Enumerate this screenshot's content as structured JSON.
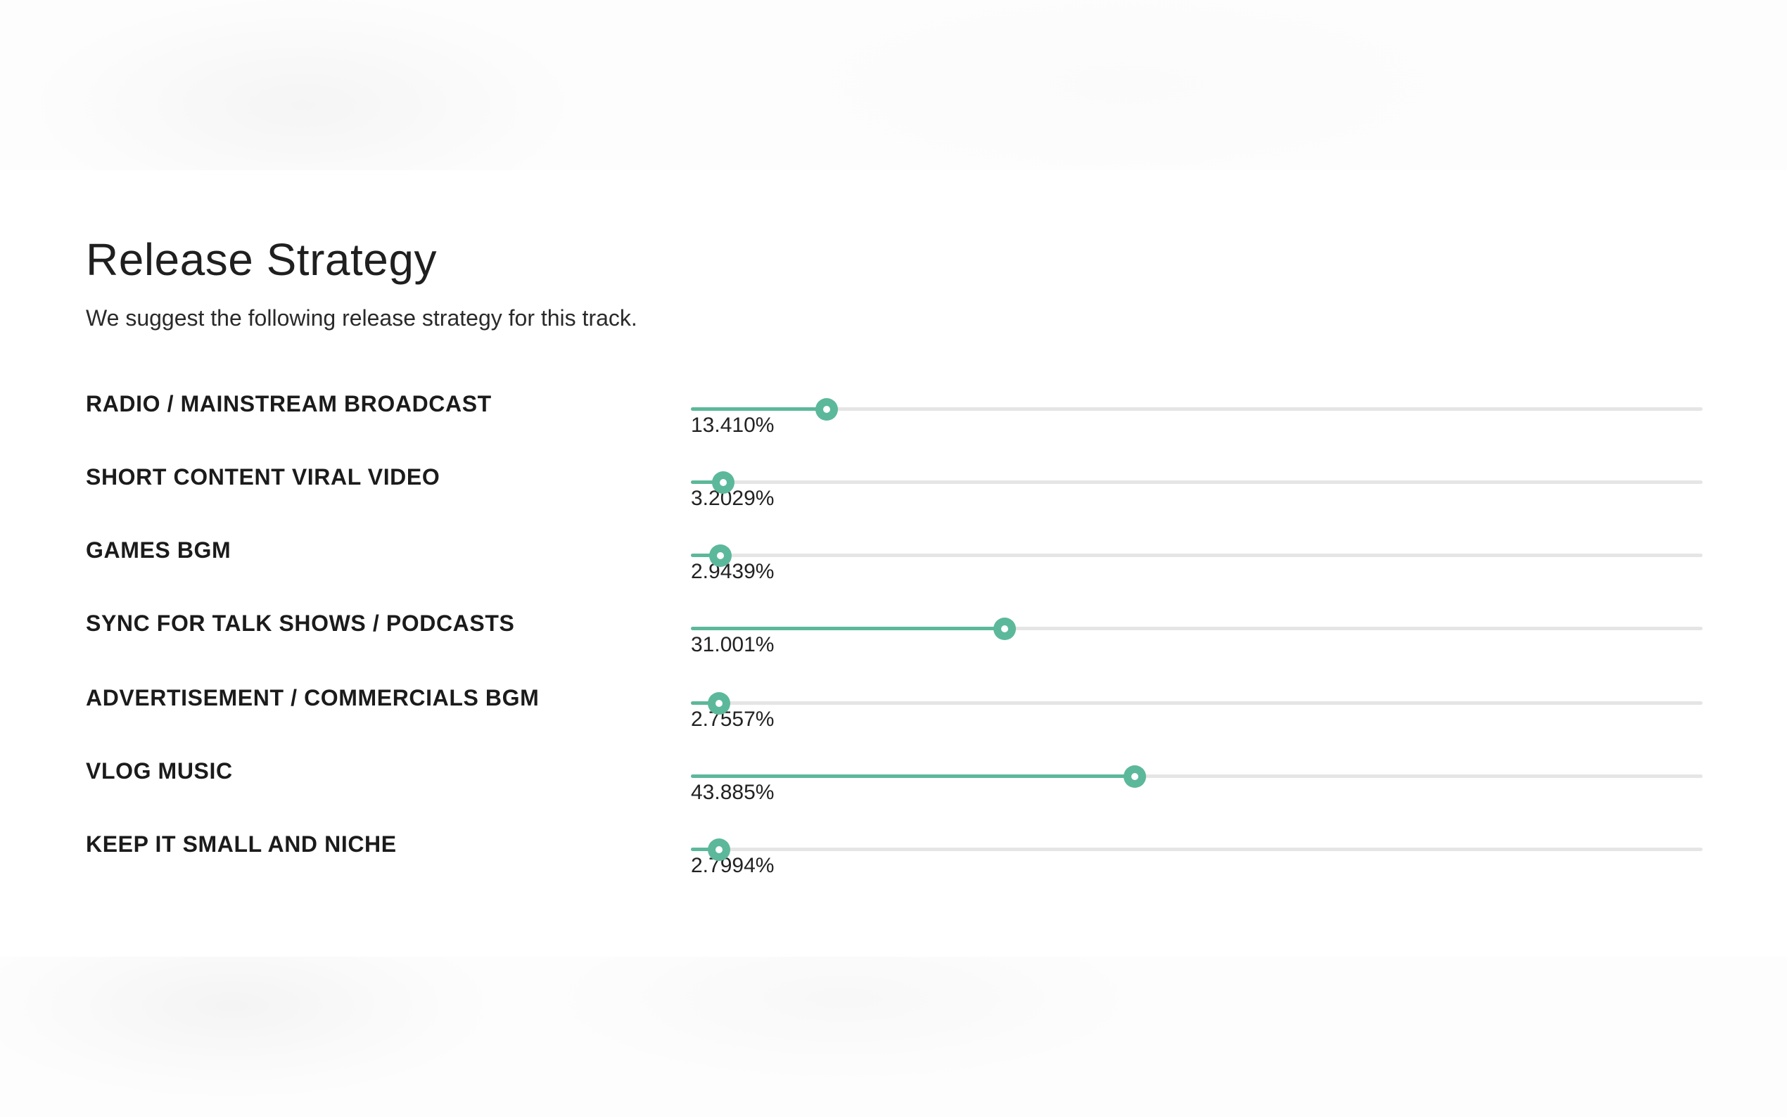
{
  "title": "Release Strategy",
  "subtitle": "We suggest the following release strategy for this track.",
  "accent_color": "#5cb89a",
  "rows": [
    {
      "label": "RADIO / MAINSTREAM BROADCAST",
      "value_text": "13.410%",
      "fraction": 0.1341
    },
    {
      "label": "SHORT CONTENT VIRAL VIDEO",
      "value_text": "3.2029%",
      "fraction": 0.032029
    },
    {
      "label": "GAMES BGM",
      "value_text": "2.9439%",
      "fraction": 0.029439
    },
    {
      "label": "SYNC FOR TALK SHOWS / PODCASTS",
      "value_text": "31.001%",
      "fraction": 0.31001
    },
    {
      "label": "ADVERTISEMENT / COMMERCIALS BGM",
      "value_text": "2.7557%",
      "fraction": 0.027557
    },
    {
      "label": "VLOG MUSIC",
      "value_text": "43.885%",
      "fraction": 0.43885
    },
    {
      "label": "KEEP IT SMALL AND NICHE",
      "value_text": "2.7994%",
      "fraction": 0.027994
    }
  ]
}
